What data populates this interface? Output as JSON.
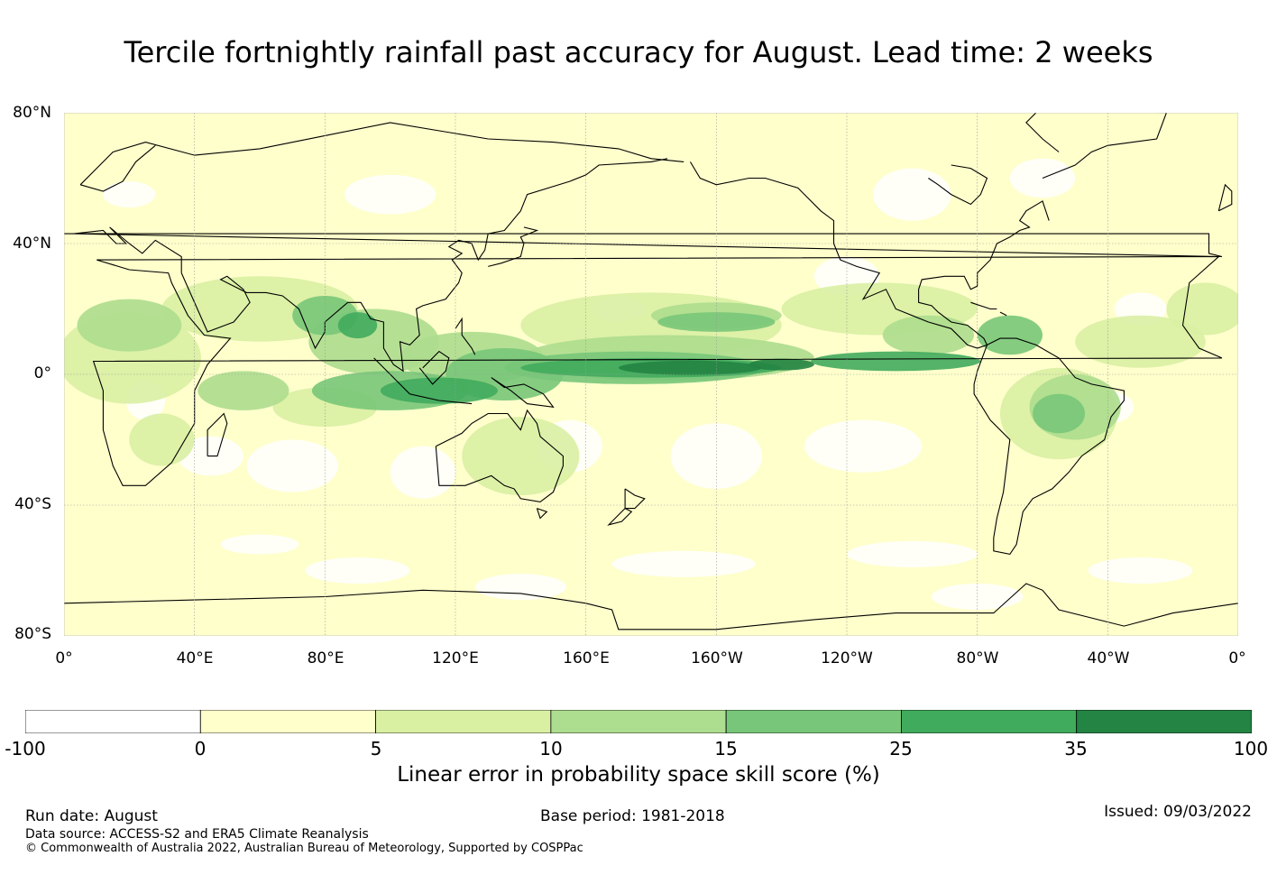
{
  "title": "Tercile fortnightly rainfall past accuracy for August. Lead time: 2 weeks",
  "map": {
    "lat_labels": [
      "80°N",
      "40°N",
      "0°",
      "40°S",
      "80°S"
    ],
    "lon_labels": [
      "0°",
      "40°E",
      "80°E",
      "120°E",
      "160°E",
      "160°W",
      "120°W",
      "80°W",
      "40°W",
      "0°"
    ],
    "projection": "equirectangular, Pacific-centred",
    "lat_range": [
      -80,
      80
    ],
    "lon_range": [
      0,
      360
    ],
    "gridlines": true
  },
  "colorbar": {
    "ticks": [
      "-100",
      "0",
      "5",
      "10",
      "15",
      "25",
      "35",
      "100"
    ],
    "colors": [
      "#ffffff",
      "#ffffcc",
      "#d9f0a3",
      "#addd8e",
      "#78c679",
      "#41ab5d",
      "#238443"
    ],
    "label": "Linear error in probability space skill score (%)"
  },
  "footer": {
    "run_date": "Run date: August",
    "base_period": "Base period: 1981-2018",
    "issued": "Issued: 09/03/2022",
    "data_source": "Data source: ACCESS-S2 and ERA5 Climate Reanalysis",
    "copyright": "© Commonwealth of Australia 2022, Australian Bureau of Meteorology, Supported by COSPPac"
  }
}
